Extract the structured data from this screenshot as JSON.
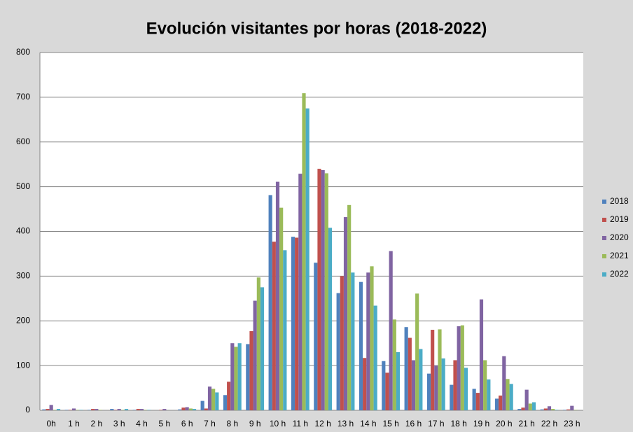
{
  "chart_data": {
    "type": "bar",
    "title": "Evolución visitantes por horas (2018-2022)",
    "categories": [
      "0h",
      "1 h",
      "2 h",
      "3 h",
      "4 h",
      "5 h",
      "6 h",
      "7 h",
      "8 h",
      "9 h",
      "10 h",
      "11 h",
      "12 h",
      "13 h",
      "14 h",
      "15 h",
      "16 h",
      "17 h",
      "18 h",
      "19 h",
      "20 h",
      "21 h",
      "22 h",
      "23 h"
    ],
    "series": [
      {
        "name": "2018",
        "color": "#4f81bd",
        "values": [
          2,
          1,
          1,
          3,
          1,
          0,
          2,
          21,
          34,
          148,
          481,
          388,
          330,
          262,
          287,
          110,
          186,
          82,
          57,
          48,
          26,
          3,
          2,
          1
        ]
      },
      {
        "name": "2019",
        "color": "#c0504d",
        "values": [
          3,
          1,
          3,
          1,
          3,
          1,
          6,
          4,
          64,
          177,
          377,
          386,
          540,
          300,
          117,
          84,
          162,
          180,
          112,
          39,
          33,
          6,
          4,
          2
        ]
      },
      {
        "name": "2020",
        "color": "#8064a2",
        "values": [
          12,
          4,
          3,
          3,
          3,
          3,
          7,
          53,
          150,
          245,
          511,
          529,
          537,
          432,
          308,
          356,
          112,
          100,
          188,
          248,
          121,
          46,
          9,
          10
        ]
      },
      {
        "name": "2021",
        "color": "#9bbb59",
        "values": [
          1,
          1,
          1,
          1,
          1,
          0,
          4,
          48,
          142,
          297,
          453,
          709,
          530,
          459,
          322,
          203,
          261,
          181,
          190,
          112,
          70,
          15,
          3,
          1
        ]
      },
      {
        "name": "2022",
        "color": "#4bacc6",
        "values": [
          3,
          1,
          0,
          3,
          1,
          0,
          3,
          40,
          150,
          275,
          358,
          675,
          408,
          308,
          234,
          130,
          137,
          116,
          95,
          69,
          59,
          18,
          1,
          0
        ]
      }
    ],
    "ylim": [
      0,
      800
    ],
    "yticks": [
      0,
      100,
      200,
      300,
      400,
      500,
      600,
      700,
      800
    ],
    "grid": true,
    "legend": "right"
  }
}
